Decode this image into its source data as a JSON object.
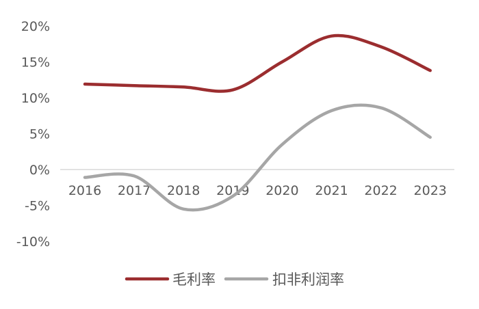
{
  "chart_data": {
    "type": "line",
    "title": "",
    "xlabel": "",
    "ylabel": "",
    "categories": [
      "2016",
      "2017",
      "2018",
      "2019",
      "2020",
      "2021",
      "2022",
      "2023"
    ],
    "series": [
      {
        "name": "毛利率",
        "color": "#9b2d2f",
        "values": [
          11.9,
          11.7,
          11.5,
          11.1,
          15.0,
          18.6,
          17.1,
          13.8
        ]
      },
      {
        "name": "扣非利润率",
        "color": "#a6a6a6",
        "values": [
          -1.1,
          -0.9,
          -5.5,
          -3.7,
          3.5,
          8.2,
          8.6,
          4.5
        ]
      }
    ],
    "y_ticks": [
      "20%",
      "15%",
      "10%",
      "5%",
      "0%",
      "-5%",
      "-10%"
    ],
    "ylim": [
      -10,
      20
    ],
    "smooth": true,
    "grid": false,
    "legend_position": "bottom",
    "zero_line_color": "#d9d9d9"
  }
}
